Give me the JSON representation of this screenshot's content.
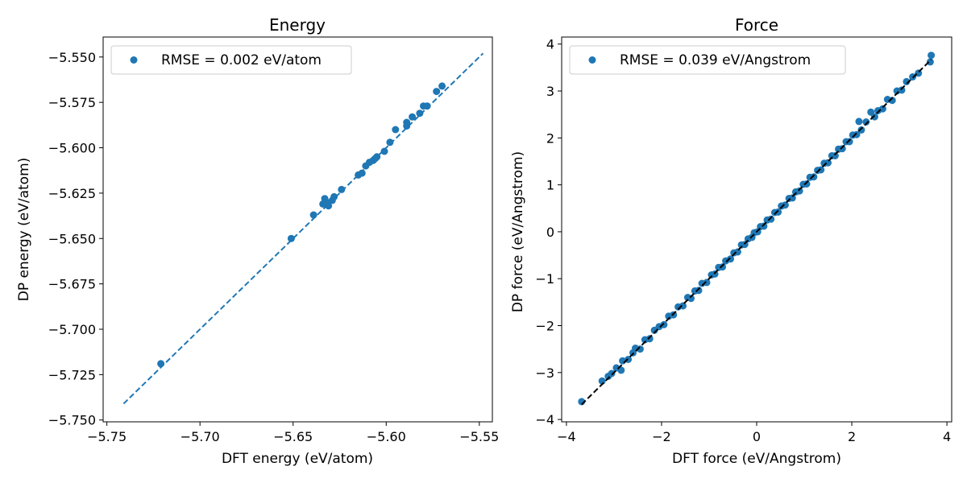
{
  "chart_data": [
    {
      "type": "scatter",
      "title": "Energy",
      "xlabel": "DFT energy (eV/atom)",
      "ylabel": "DP energy (eV/atom)",
      "xlim": [
        -5.752,
        -5.543
      ],
      "ylim": [
        -5.751,
        -5.539
      ],
      "x_ticks": [
        -5.75,
        -5.7,
        -5.65,
        -5.6,
        -5.55
      ],
      "x_tick_labels": [
        "−5.75",
        "−5.70",
        "−5.65",
        "−5.60",
        "−5.55"
      ],
      "y_ticks": [
        -5.75,
        -5.725,
        -5.7,
        -5.675,
        -5.65,
        -5.625,
        -5.6,
        -5.575,
        -5.55
      ],
      "y_tick_labels": [
        "−5.750",
        "−5.725",
        "−5.700",
        "−5.675",
        "−5.650",
        "−5.625",
        "−5.600",
        "−5.575",
        "−5.550"
      ],
      "grid": false,
      "legend_position": "top-left",
      "series": [
        {
          "name": "RMSE = 0.002 eV/atom",
          "color": "#1f77b4",
          "points": [
            [
              -5.721,
              -5.719
            ],
            [
              -5.651,
              -5.65
            ],
            [
              -5.639,
              -5.637
            ],
            [
              -5.634,
              -5.631
            ],
            [
              -5.633,
              -5.628
            ],
            [
              -5.632,
              -5.63
            ],
            [
              -5.631,
              -5.632
            ],
            [
              -5.629,
              -5.629
            ],
            [
              -5.628,
              -5.627
            ],
            [
              -5.624,
              -5.623
            ],
            [
              -5.615,
              -5.615
            ],
            [
              -5.613,
              -5.614
            ],
            [
              -5.611,
              -5.61
            ],
            [
              -5.609,
              -5.608
            ],
            [
              -5.607,
              -5.607
            ],
            [
              -5.606,
              -5.606
            ],
            [
              -5.605,
              -5.605
            ],
            [
              -5.601,
              -5.602
            ],
            [
              -5.598,
              -5.597
            ],
            [
              -5.595,
              -5.59
            ],
            [
              -5.589,
              -5.588
            ],
            [
              -5.589,
              -5.586
            ],
            [
              -5.586,
              -5.583
            ],
            [
              -5.582,
              -5.581
            ],
            [
              -5.58,
              -5.577
            ],
            [
              -5.578,
              -5.577
            ],
            [
              -5.573,
              -5.569
            ],
            [
              -5.57,
              -5.566
            ]
          ]
        }
      ],
      "reference_line": {
        "style": "dashed",
        "color": "#1f77b4",
        "from": [
          -5.741,
          -5.741
        ],
        "to": [
          -5.548,
          -5.548
        ]
      }
    },
    {
      "type": "scatter",
      "title": "Force",
      "xlabel": "DFT force (eV/Angstrom)",
      "ylabel": "DP force (eV/Angstrom)",
      "xlim": [
        -4.1,
        4.1
      ],
      "ylim": [
        -4.05,
        4.15
      ],
      "x_ticks": [
        -4,
        -2,
        0,
        2,
        4
      ],
      "x_tick_labels": [
        "−4",
        "−2",
        "0",
        "2",
        "4"
      ],
      "y_ticks": [
        -4,
        -3,
        -2,
        -1,
        0,
        1,
        2,
        3,
        4
      ],
      "y_tick_labels": [
        "−4",
        "−3",
        "−2",
        "−1",
        "0",
        "1",
        "2",
        "3",
        "4"
      ],
      "grid": false,
      "legend_position": "top-left",
      "series": [
        {
          "name": "RMSE = 0.039 eV/Angstrom",
          "color": "#1f77b4",
          "points": [
            [
              -3.68,
              -3.62
            ],
            [
              -3.25,
              -3.18
            ],
            [
              -3.12,
              -3.08
            ],
            [
              -3.05,
              -3.02
            ],
            [
              -2.95,
              -2.9
            ],
            [
              -2.85,
              -2.95
            ],
            [
              -2.82,
              -2.75
            ],
            [
              -2.7,
              -2.72
            ],
            [
              -2.6,
              -2.58
            ],
            [
              -2.55,
              -2.48
            ],
            [
              -2.45,
              -2.5
            ],
            [
              -2.35,
              -2.3
            ],
            [
              -2.25,
              -2.28
            ],
            [
              -2.15,
              -2.1
            ],
            [
              -2.05,
              -2.02
            ],
            [
              -1.95,
              -1.98
            ],
            [
              -1.85,
              -1.8
            ],
            [
              -1.75,
              -1.77
            ],
            [
              -1.65,
              -1.6
            ],
            [
              -1.55,
              -1.58
            ],
            [
              -1.45,
              -1.4
            ],
            [
              -1.38,
              -1.42
            ],
            [
              -1.3,
              -1.26
            ],
            [
              -1.22,
              -1.25
            ],
            [
              -1.15,
              -1.1
            ],
            [
              -1.05,
              -1.08
            ],
            [
              -0.95,
              -0.92
            ],
            [
              -0.88,
              -0.9
            ],
            [
              -0.8,
              -0.76
            ],
            [
              -0.72,
              -0.75
            ],
            [
              -0.65,
              -0.62
            ],
            [
              -0.55,
              -0.58
            ],
            [
              -0.48,
              -0.45
            ],
            [
              -0.4,
              -0.43
            ],
            [
              -0.32,
              -0.28
            ],
            [
              -0.25,
              -0.27
            ],
            [
              -0.18,
              -0.15
            ],
            [
              -0.1,
              -0.12
            ],
            [
              -0.05,
              -0.02
            ],
            [
              0.02,
              0.0
            ],
            [
              0.08,
              0.11
            ],
            [
              0.15,
              0.12
            ],
            [
              0.22,
              0.25
            ],
            [
              0.3,
              0.27
            ],
            [
              0.38,
              0.41
            ],
            [
              0.45,
              0.42
            ],
            [
              0.52,
              0.55
            ],
            [
              0.6,
              0.57
            ],
            [
              0.68,
              0.71
            ],
            [
              0.75,
              0.72
            ],
            [
              0.82,
              0.85
            ],
            [
              0.9,
              0.87
            ],
            [
              0.98,
              1.01
            ],
            [
              1.05,
              1.02
            ],
            [
              1.12,
              1.16
            ],
            [
              1.2,
              1.17
            ],
            [
              1.28,
              1.31
            ],
            [
              1.35,
              1.32
            ],
            [
              1.42,
              1.46
            ],
            [
              1.5,
              1.47
            ],
            [
              1.58,
              1.62
            ],
            [
              1.65,
              1.62
            ],
            [
              1.72,
              1.76
            ],
            [
              1.8,
              1.77
            ],
            [
              1.88,
              1.92
            ],
            [
              1.95,
              1.92
            ],
            [
              2.02,
              2.06
            ],
            [
              2.1,
              2.07
            ],
            [
              2.15,
              2.35
            ],
            [
              2.2,
              2.17
            ],
            [
              2.3,
              2.34
            ],
            [
              2.4,
              2.55
            ],
            [
              2.48,
              2.45
            ],
            [
              2.55,
              2.58
            ],
            [
              2.65,
              2.62
            ],
            [
              2.75,
              2.82
            ],
            [
              2.85,
              2.8
            ],
            [
              2.95,
              3.0
            ],
            [
              3.05,
              3.02
            ],
            [
              3.15,
              3.2
            ],
            [
              3.28,
              3.3
            ],
            [
              3.4,
              3.38
            ],
            [
              3.65,
              3.62
            ],
            [
              3.67,
              3.76
            ]
          ]
        }
      ],
      "reference_line": {
        "style": "dashed",
        "color": "#000000",
        "from": [
          -3.68,
          -3.68
        ],
        "to": [
          3.67,
          3.67
        ]
      }
    }
  ]
}
